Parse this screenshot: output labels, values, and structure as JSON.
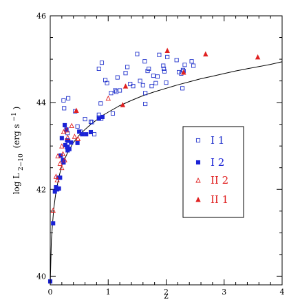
{
  "chart_data": {
    "type": "scatter",
    "xlabel": "z",
    "ylabel_main": "log L",
    "ylabel_sub": "2−10",
    "ylabel_unit": "(erg s",
    "ylabel_unit_sup": "−1",
    "ylabel_unit_end": ")",
    "xlim": [
      0,
      4
    ],
    "ylim": [
      39.8,
      46
    ],
    "x_ticks": [
      0,
      1,
      2,
      3,
      4
    ],
    "y_ticks": [
      40,
      42,
      44,
      46
    ],
    "x_tick_labels": [
      "0",
      "1",
      "2",
      "3",
      "4"
    ],
    "y_tick_labels": [
      "40",
      "42",
      "44",
      "46"
    ],
    "legend_position": "right",
    "series": [
      {
        "name": "I 1",
        "marker": "open-square",
        "color": "#2233cc",
        "points": [
          [
            0.31,
            44.1
          ],
          [
            0.24,
            43.87
          ],
          [
            0.3,
            43.3
          ],
          [
            0.43,
            43.8
          ],
          [
            0.47,
            43.45
          ],
          [
            0.52,
            43.33
          ],
          [
            0.6,
            43.62
          ],
          [
            0.7,
            43.56
          ],
          [
            0.72,
            43.55
          ],
          [
            0.76,
            43.27
          ],
          [
            0.84,
            43.72
          ],
          [
            0.84,
            43.66
          ],
          [
            0.87,
            43.98
          ],
          [
            0.88,
            43.63
          ],
          [
            0.84,
            44.78
          ],
          [
            0.89,
            44.92
          ],
          [
            0.95,
            44.52
          ],
          [
            0.98,
            44.45
          ],
          [
            1.05,
            44.22
          ],
          [
            1.08,
            43.75
          ],
          [
            1.12,
            44.28
          ],
          [
            1.16,
            44.58
          ],
          [
            1.2,
            44.28
          ],
          [
            1.3,
            44.68
          ],
          [
            1.33,
            44.82
          ],
          [
            1.38,
            44.43
          ],
          [
            1.43,
            44.38
          ],
          [
            1.5,
            45.12
          ],
          [
            1.55,
            44.5
          ],
          [
            1.6,
            44.4
          ],
          [
            1.63,
            44.95
          ],
          [
            1.64,
            44.22
          ],
          [
            1.64,
            43.97
          ],
          [
            1.68,
            44.73
          ],
          [
            1.7,
            44.78
          ],
          [
            1.75,
            44.38
          ],
          [
            1.78,
            44.62
          ],
          [
            1.82,
            44.45
          ],
          [
            1.85,
            44.6
          ],
          [
            1.88,
            45.1
          ],
          [
            1.95,
            44.85
          ],
          [
            1.96,
            44.78
          ],
          [
            1.97,
            44.72
          ],
          [
            2.0,
            44.46
          ],
          [
            2.02,
            45.05
          ],
          [
            2.18,
            44.98
          ],
          [
            2.22,
            44.7
          ],
          [
            2.26,
            44.67
          ],
          [
            2.28,
            44.33
          ],
          [
            2.29,
            44.75
          ],
          [
            2.3,
            44.73
          ],
          [
            2.32,
            44.87
          ],
          [
            2.44,
            44.95
          ],
          [
            2.47,
            44.85
          ],
          [
            0.23,
            44.05
          ],
          [
            1.14,
            44.25
          ]
        ]
      },
      {
        "name": "I 2",
        "marker": "filled-square",
        "color": "#1a22d6",
        "points": [
          [
            0.0,
            39.88
          ],
          [
            0.05,
            41.22
          ],
          [
            0.08,
            41.95
          ],
          [
            0.1,
            42.05
          ],
          [
            0.12,
            42.0
          ],
          [
            0.15,
            42.02
          ],
          [
            0.14,
            42.27
          ],
          [
            0.17,
            42.27
          ],
          [
            0.18,
            42.78
          ],
          [
            0.2,
            43.18
          ],
          [
            0.22,
            42.68
          ],
          [
            0.23,
            42.62
          ],
          [
            0.25,
            43.48
          ],
          [
            0.26,
            43.02
          ],
          [
            0.28,
            43.38
          ],
          [
            0.29,
            43.13
          ],
          [
            0.29,
            42.97
          ],
          [
            0.3,
            42.98
          ],
          [
            0.3,
            42.9
          ],
          [
            0.33,
            42.93
          ],
          [
            0.36,
            43.08
          ],
          [
            0.47,
            43.07
          ],
          [
            0.5,
            43.33
          ],
          [
            0.62,
            43.27
          ],
          [
            0.7,
            43.32
          ],
          [
            0.84,
            43.63
          ],
          [
            0.9,
            43.67
          ],
          [
            0.31,
            43.12
          ],
          [
            0.55,
            43.27
          ]
        ]
      },
      {
        "name": "II 2",
        "marker": "open-triangle",
        "color": "#e02020",
        "points": [
          [
            0.05,
            41.52
          ],
          [
            0.1,
            42.3
          ],
          [
            0.12,
            42.22
          ],
          [
            0.13,
            42.77
          ],
          [
            0.17,
            42.6
          ],
          [
            0.2,
            42.5
          ],
          [
            0.2,
            43.0
          ],
          [
            0.22,
            42.82
          ],
          [
            0.23,
            43.33
          ],
          [
            0.25,
            42.68
          ],
          [
            0.28,
            43.37
          ],
          [
            0.3,
            43.2
          ],
          [
            0.37,
            43.47
          ],
          [
            0.42,
            43.22
          ],
          [
            0.48,
            43.17
          ],
          [
            1.0,
            44.1
          ]
        ]
      },
      {
        "name": "II 1",
        "marker": "filled-triangle",
        "color": "#e02020",
        "points": [
          [
            1.25,
            43.95
          ],
          [
            1.3,
            44.38
          ],
          [
            2.02,
            45.2
          ],
          [
            2.68,
            45.12
          ],
          [
            3.58,
            45.05
          ],
          [
            0.45,
            43.82
          ],
          [
            2.3,
            44.7
          ]
        ]
      }
    ],
    "curve": {
      "color": "#000000",
      "points": [
        [
          0.0,
          39.8
        ],
        [
          0.02,
          40.85
        ],
        [
          0.04,
          41.22
        ],
        [
          0.06,
          41.55
        ],
        [
          0.08,
          41.75
        ],
        [
          0.1,
          41.95
        ],
        [
          0.15,
          42.28
        ],
        [
          0.2,
          42.55
        ],
        [
          0.3,
          42.85
        ],
        [
          0.4,
          43.08
        ],
        [
          0.5,
          43.25
        ],
        [
          0.6,
          43.38
        ],
        [
          0.7,
          43.5
        ],
        [
          0.8,
          43.6
        ],
        [
          0.9,
          43.7
        ],
        [
          1.0,
          43.78
        ],
        [
          1.2,
          43.93
        ],
        [
          1.4,
          44.05
        ],
        [
          1.6,
          44.16
        ],
        [
          1.8,
          44.25
        ],
        [
          2.0,
          44.33
        ],
        [
          2.2,
          44.41
        ],
        [
          2.4,
          44.48
        ],
        [
          2.6,
          44.55
        ],
        [
          2.8,
          44.61
        ],
        [
          3.0,
          44.67
        ],
        [
          3.2,
          44.73
        ],
        [
          3.4,
          44.78
        ],
        [
          3.6,
          44.83
        ],
        [
          3.8,
          44.88
        ],
        [
          4.0,
          44.94
        ]
      ]
    }
  }
}
